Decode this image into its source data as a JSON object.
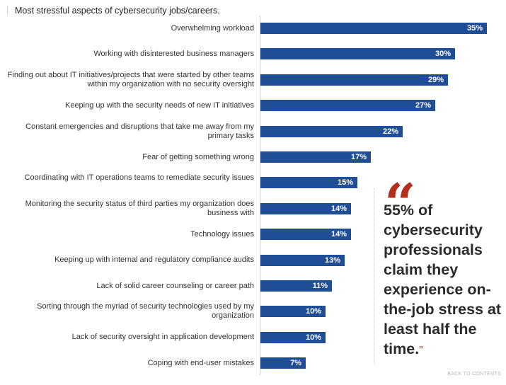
{
  "chart_data": {
    "type": "bar",
    "orientation": "horizontal",
    "title": "Most stressful aspects of cybersecurity jobs/careers.",
    "bar_color": "#1f4e96",
    "value_suffix": "%",
    "xlim": [
      0,
      37
    ],
    "categories": [
      "Overwhelming workload",
      "Working with disinterested business managers",
      "Finding out about IT initiatives/projects that were started by other teams within my organization with no security oversight",
      "Keeping up with the security needs of new IT initiatives",
      "Constant emergencies and disruptions that take me away from my primary tasks",
      "Fear of getting something wrong",
      "Coordinating with IT operations teams to remediate security issues",
      "Monitoring the security status of third parties my organization does business with",
      "Technology issues",
      "Keeping up with internal and regulatory compliance audits",
      "Lack of solid career counseling or career path",
      "Sorting through the myriad of security technologies used by my organization",
      "Lack of security oversight in application development",
      "Coping with end-user mistakes"
    ],
    "values": [
      35,
      30,
      29,
      27,
      22,
      17,
      15,
      14,
      14,
      13,
      11,
      10,
      10,
      7
    ]
  },
  "quote": {
    "mark": "“",
    "text": "55% of cybersecurity professionals claim they experience on-the-job stress at least half the time.",
    "close": "”",
    "accent_color": "#b5301c"
  },
  "footer": {
    "back_link": "BACK TO CONTENTS"
  }
}
